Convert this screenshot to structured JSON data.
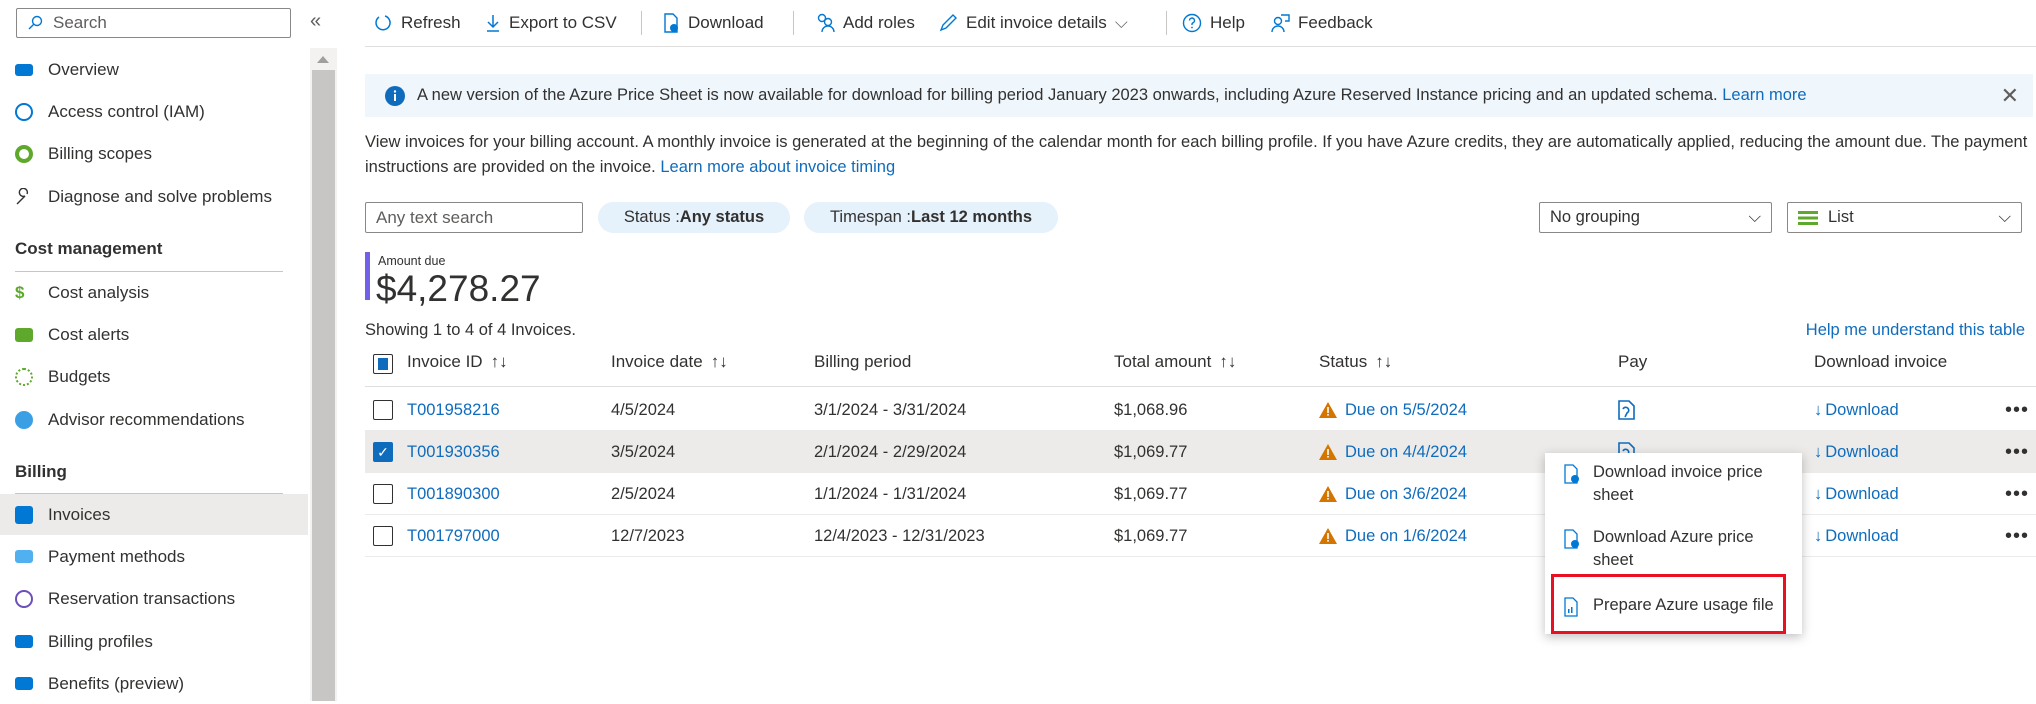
{
  "sidebar": {
    "search_placeholder": "Search",
    "collapse_icon": "double-chevron-left",
    "items": [
      {
        "label": "Overview",
        "icon": "billing-overview-icon",
        "color": "#0078d4"
      },
      {
        "label": "Access control (IAM)",
        "icon": "people-icon",
        "color": "#0078d4"
      },
      {
        "label": "Billing scopes",
        "icon": "billing-scope-icon",
        "color": "#5ea92c"
      },
      {
        "label": "Diagnose and solve problems",
        "icon": "wrench-icon",
        "color": "#323130"
      }
    ],
    "sections": [
      {
        "title": "Cost management",
        "items": [
          {
            "label": "Cost analysis",
            "icon": "cost-analysis-icon",
            "color": "#5ea92c"
          },
          {
            "label": "Cost alerts",
            "icon": "cost-alert-icon",
            "color": "#5ea92c"
          },
          {
            "label": "Budgets",
            "icon": "budget-icon",
            "color": "#5ea92c"
          },
          {
            "label": "Advisor recommendations",
            "icon": "advisor-cloud-icon",
            "color": "#3ba0e3"
          }
        ]
      },
      {
        "title": "Billing",
        "items": [
          {
            "label": "Invoices",
            "icon": "invoice-icon",
            "color": "#0078d4",
            "selected": true
          },
          {
            "label": "Payment methods",
            "icon": "credit-card-icon",
            "color": "#50b0f0"
          },
          {
            "label": "Reservation transactions",
            "icon": "clock-icon",
            "color": "#6b4fbb"
          },
          {
            "label": "Billing profiles",
            "icon": "billing-profile-icon",
            "color": "#0078d4"
          },
          {
            "label": "Benefits (preview)",
            "icon": "benefits-icon",
            "color": "#0078d4"
          }
        ]
      }
    ]
  },
  "toolbar": {
    "refresh": "Refresh",
    "export": "Export to CSV",
    "download": "Download",
    "add_roles": "Add roles",
    "edit": "Edit invoice details",
    "help": "Help",
    "feedback": "Feedback"
  },
  "info": {
    "text": "A new version of the Azure Price Sheet is now available for download for billing period January 2023 onwards, including Azure Reserved Instance pricing and an updated schema.",
    "link": "Learn more"
  },
  "description": {
    "text": "View invoices for your billing account. A monthly invoice is generated at the beginning of the calendar month for each billing profile. If you have Azure credits, they are automatically applied, reducing the amount due. The payment instructions are provided on the invoice.",
    "link": "Learn more about invoice timing"
  },
  "filters": {
    "search_placeholder": "Any text search",
    "status_label": "Status : ",
    "status_value": "Any status",
    "timespan_label": "Timespan : ",
    "timespan_value": "Last 12 months",
    "grouping": "No grouping",
    "view": "List"
  },
  "amount_due": {
    "label": "Amount due",
    "value": "$4,278.27",
    "accent": "#7160e8"
  },
  "table": {
    "showing": "Showing 1 to 4 of 4 Invoices.",
    "help_link": "Help me understand this table",
    "columns": [
      "Invoice ID",
      "Invoice date",
      "Billing period",
      "Total amount",
      "Status",
      "Pay",
      "Download invoice"
    ],
    "rows": [
      {
        "id": "T001958216",
        "date": "4/5/2024",
        "period": "3/1/2024 - 3/31/2024",
        "total": "$1,068.96",
        "status": "Due on 5/5/2024",
        "download": "Download",
        "checked": false
      },
      {
        "id": "T001930356",
        "date": "3/5/2024",
        "period": "2/1/2024 - 2/29/2024",
        "total": "$1,069.77",
        "status": "Due on 4/4/2024",
        "download": "Download",
        "checked": true
      },
      {
        "id": "T001890300",
        "date": "2/5/2024",
        "period": "1/1/2024 - 1/31/2024",
        "total": "$1,069.77",
        "status": "Due on 3/6/2024",
        "download": "Download",
        "checked": false
      },
      {
        "id": "T001797000",
        "date": "12/7/2023",
        "period": "12/4/2023 - 12/31/2023",
        "total": "$1,069.77",
        "status": "Due on 1/6/2024",
        "download": "Download",
        "checked": false
      }
    ]
  },
  "context_menu": {
    "items": [
      "Download invoice price sheet",
      "Download Azure price sheet",
      "Prepare Azure usage file"
    ],
    "highlight_color": "#e81123"
  },
  "colors": {
    "link": "#0f6cbd",
    "warning": "#d47500",
    "selected_row": "#edebe9"
  }
}
